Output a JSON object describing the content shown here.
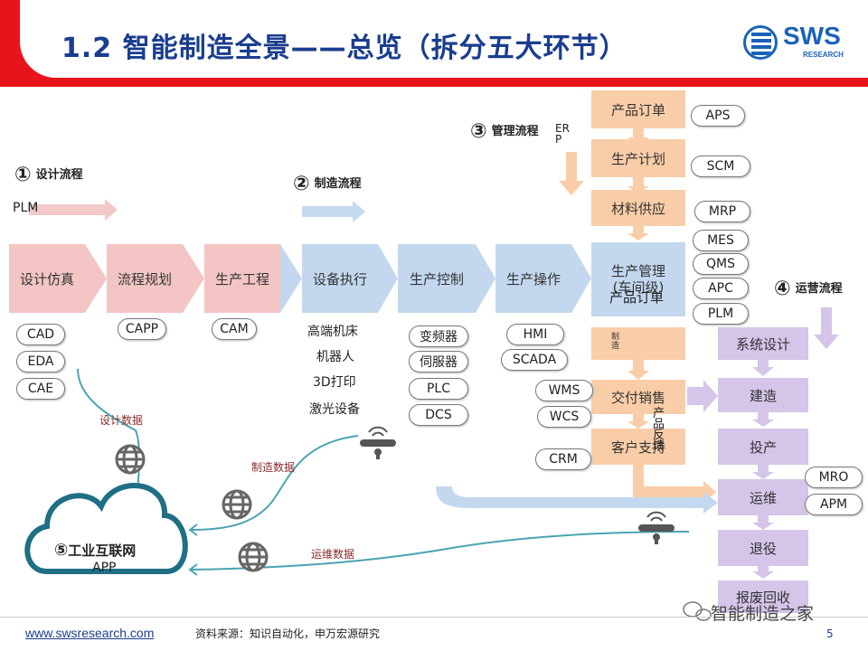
{
  "header": {
    "title": "1.2 智能制造全景——总览（拆分五大环节）",
    "logo_name": "SWS",
    "logo_sub": "RESEARCH"
  },
  "flows": {
    "design": {
      "num": "①",
      "label": "设计流程"
    },
    "manufacture": {
      "num": "②",
      "label": "制造流程"
    },
    "management": {
      "num": "③",
      "label": "管理流程",
      "er_text": "ER P"
    },
    "operation": {
      "num": "④",
      "label": "运营流程"
    },
    "iiot": {
      "num": "⑤",
      "label": "工业互联网",
      "sub": "APP"
    }
  },
  "plm_label": "PLM",
  "main_row": [
    {
      "label": "设计仿真",
      "style": "pink"
    },
    {
      "label": "流程规划",
      "style": "pink"
    },
    {
      "label": "生产工程",
      "style": "pink"
    },
    {
      "label": "设备执行",
      "style": "blue"
    },
    {
      "label": "生产控制",
      "style": "blue"
    },
    {
      "label": "生产操作",
      "style": "blue"
    },
    {
      "label": "生产管理\n(车间级)",
      "style": "blue"
    }
  ],
  "design_tools": [
    "CAD",
    "EDA",
    "CAE"
  ],
  "capp": "CAPP",
  "cam": "CAM",
  "equipment": [
    "高端机床",
    "机器人",
    "3D打印",
    "激光设备"
  ],
  "control": [
    "变频器",
    "伺服器",
    "PLC",
    "DCS"
  ],
  "operation_tools": [
    "HMI",
    "SCADA"
  ],
  "management_col": [
    "产品订单",
    "生产计划",
    "材料供应"
  ],
  "management_tags": [
    "APS",
    "SCM",
    "MRP"
  ],
  "workshop_tags": [
    "MES",
    "QMS",
    "APC",
    "PLM"
  ],
  "overlap_text": "产品订单",
  "vertical_text": "制\n造",
  "delivery": "交付销售",
  "support": "客户支持",
  "support_overlay": "产\n品\n反\n馈",
  "wms": "WMS",
  "wcs": "WCS",
  "crm": "CRM",
  "ops_col": [
    "系统设计",
    "建造",
    "投产",
    "运维",
    "退役",
    "报废回收"
  ],
  "mro": "MRO",
  "apm": "APM",
  "data_labels": {
    "design": "设计数据",
    "manufacture": "制造数据",
    "operation": "运维数据"
  },
  "footer": {
    "url": "www.swsresearch.com",
    "source": "资料来源：知识自动化，申万宏源研究",
    "page": "5",
    "watermark": "智能制造之家"
  }
}
